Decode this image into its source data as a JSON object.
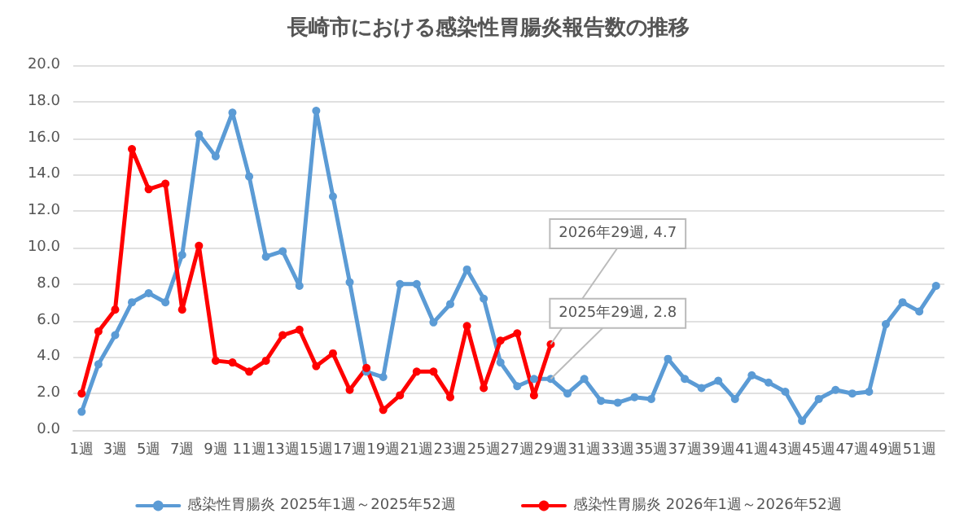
{
  "chart_data": {
    "type": "line",
    "title": "長崎市における感染性胃腸炎報告数の推移",
    "categories": [
      "1週",
      null,
      "3週",
      null,
      "5週",
      null,
      "7週",
      null,
      "9週",
      null,
      "11週",
      null,
      "13週",
      null,
      "15週",
      null,
      "17週",
      null,
      "19週",
      null,
      "21週",
      null,
      "23週",
      null,
      "25週",
      null,
      "27週",
      null,
      "29週",
      null,
      "31週",
      null,
      "33週",
      null,
      "35週",
      null,
      "37週",
      null,
      "39週",
      null,
      "41週",
      null,
      "43週",
      null,
      "45週",
      null,
      "47週",
      null,
      "49週",
      null,
      "51週",
      null
    ],
    "series": [
      {
        "name": "感染性胃腸炎 2025年1週～2025年52週",
        "color": "#5b9bd5",
        "values": [
          1.0,
          3.6,
          5.2,
          7.0,
          7.5,
          7.0,
          9.6,
          16.2,
          15.0,
          17.4,
          13.9,
          9.5,
          9.8,
          7.9,
          17.5,
          12.8,
          8.1,
          3.2,
          2.9,
          8.0,
          8.0,
          5.9,
          6.9,
          8.8,
          7.2,
          3.7,
          2.4,
          2.8,
          2.8,
          2.0,
          2.8,
          1.6,
          1.5,
          1.8,
          1.7,
          3.9,
          2.8,
          2.3,
          2.7,
          1.7,
          3.0,
          2.6,
          2.1,
          0.5,
          1.7,
          2.2,
          2.0,
          2.1,
          5.8,
          7.0,
          6.5,
          7.9
        ]
      },
      {
        "name": "感染性胃腸炎 2026年1週～2026年52週",
        "color": "#ff0000",
        "values": [
          2.0,
          5.4,
          6.6,
          15.4,
          13.2,
          13.5,
          6.6,
          10.1,
          3.8,
          3.7,
          3.2,
          3.8,
          5.2,
          5.5,
          3.5,
          4.2,
          2.2,
          3.4,
          1.1,
          1.9,
          3.2,
          3.2,
          1.8,
          5.7,
          2.3,
          4.9,
          5.3,
          1.9,
          4.7,
          null,
          null,
          null,
          null,
          null,
          null,
          null,
          null,
          null,
          null,
          null,
          null,
          null,
          null,
          null,
          null,
          null,
          null,
          null,
          null,
          null,
          null,
          null
        ]
      }
    ],
    "annotations": [
      {
        "text": "2026年29週, 4.7",
        "x": "29週",
        "y": 4.7
      },
      {
        "text": "2025年29週, 2.8",
        "x": "29週",
        "y": 2.8
      }
    ],
    "ylim": [
      0,
      20
    ],
    "yticks": [
      {
        "value": 0,
        "label": "0.0"
      },
      {
        "value": 2,
        "label": "2.0"
      },
      {
        "value": 4,
        "label": "4.0"
      },
      {
        "value": 6,
        "label": "6.0"
      },
      {
        "value": 8,
        "label": "8.0"
      },
      {
        "value": 10,
        "label": "10.0"
      },
      {
        "value": 12,
        "label": "12.0"
      },
      {
        "value": 14,
        "label": "14.0"
      },
      {
        "value": 16,
        "label": "16.0"
      },
      {
        "value": 18,
        "label": "18.0"
      },
      {
        "value": 20,
        "label": "20.0"
      }
    ],
    "grid": "y",
    "legend": "bottom",
    "marker": "circle",
    "line_style": "solid"
  }
}
